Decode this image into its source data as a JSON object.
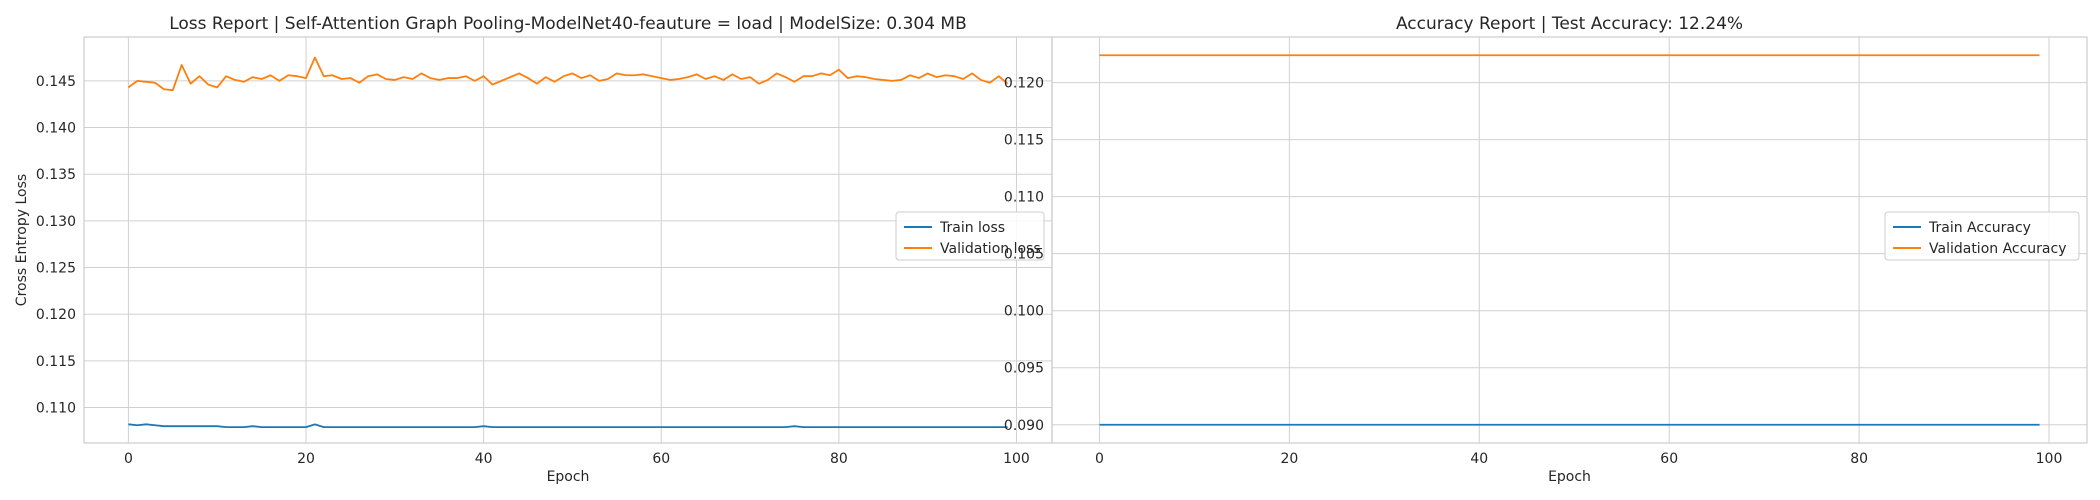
{
  "chart_data": [
    {
      "type": "line",
      "title": "Loss Report | Self-Attention Graph Pooling-ModelNet40-feauture = load | ModelSize: 0.304 MB",
      "xlabel": "Epoch",
      "ylabel": "Cross Entropy Loss",
      "xlim": [
        -5,
        104
      ],
      "ylim": [
        0.1062,
        0.1497
      ],
      "xticks": [
        0,
        20,
        40,
        60,
        80,
        100
      ],
      "yticks": [
        0.11,
        0.115,
        0.12,
        0.125,
        0.13,
        0.135,
        0.14,
        0.145
      ],
      "tick_decimals": 3,
      "grid": true,
      "legend_placement": "center-right",
      "series": [
        {
          "name": "Train loss",
          "color": "#1f77b4",
          "values": [
            0.1082,
            0.1081,
            0.1082,
            0.1081,
            0.108,
            0.108,
            0.108,
            0.108,
            0.108,
            0.108,
            0.108,
            0.1079,
            0.1079,
            0.1079,
            0.108,
            0.1079,
            0.1079,
            0.1079,
            0.1079,
            0.1079,
            0.1079,
            0.1082,
            0.1079,
            0.1079,
            0.1079,
            0.1079,
            0.1079,
            0.1079,
            0.1079,
            0.1079,
            0.1079,
            0.1079,
            0.1079,
            0.1079,
            0.1079,
            0.1079,
            0.1079,
            0.1079,
            0.1079,
            0.1079,
            0.108,
            0.1079,
            0.1079,
            0.1079,
            0.1079,
            0.1079,
            0.1079,
            0.1079,
            0.1079,
            0.1079,
            0.1079,
            0.1079,
            0.1079,
            0.1079,
            0.1079,
            0.1079,
            0.1079,
            0.1079,
            0.1079,
            0.1079,
            0.1079,
            0.1079,
            0.1079,
            0.1079,
            0.1079,
            0.1079,
            0.1079,
            0.1079,
            0.1079,
            0.1079,
            0.1079,
            0.1079,
            0.1079,
            0.1079,
            0.1079,
            0.108,
            0.1079,
            0.1079,
            0.1079,
            0.1079,
            0.1079,
            0.1079,
            0.1079,
            0.1079,
            0.1079,
            0.1079,
            0.1079,
            0.1079,
            0.1079,
            0.1079,
            0.1079,
            0.1079,
            0.1079,
            0.1079,
            0.1079,
            0.1079,
            0.1079,
            0.1079,
            0.1079,
            0.1079
          ]
        },
        {
          "name": "Validation loss",
          "color": "#ff7f0e",
          "values": [
            0.1443,
            0.145,
            0.1449,
            0.1448,
            0.1441,
            0.144,
            0.1467,
            0.1447,
            0.1455,
            0.1446,
            0.1443,
            0.1455,
            0.1451,
            0.1449,
            0.1454,
            0.1452,
            0.1456,
            0.145,
            0.1456,
            0.1455,
            0.1453,
            0.1475,
            0.1455,
            0.1456,
            0.1452,
            0.1453,
            0.1448,
            0.1455,
            0.1457,
            0.1452,
            0.1451,
            0.1454,
            0.1452,
            0.1458,
            0.1453,
            0.1451,
            0.1453,
            0.1453,
            0.1455,
            0.145,
            0.1455,
            0.1446,
            0.145,
            0.1454,
            0.1458,
            0.1453,
            0.1447,
            0.1454,
            0.1449,
            0.1455,
            0.1458,
            0.1453,
            0.1456,
            0.145,
            0.1452,
            0.1458,
            0.1456,
            0.1456,
            0.1457,
            0.1455,
            0.1453,
            0.1451,
            0.1452,
            0.1454,
            0.1457,
            0.1452,
            0.1455,
            0.1451,
            0.1457,
            0.1452,
            0.1454,
            0.1447,
            0.1451,
            0.1458,
            0.1454,
            0.1449,
            0.1455,
            0.1455,
            0.1458,
            0.1456,
            0.1462,
            0.1453,
            0.1455,
            0.1454,
            0.1452,
            0.1451,
            0.145,
            0.1451,
            0.1456,
            0.1453,
            0.1458,
            0.1454,
            0.1456,
            0.1455,
            0.1452,
            0.1458,
            0.1451,
            0.1448,
            0.1455,
            0.1447
          ]
        }
      ]
    },
    {
      "type": "line",
      "title": "Accuracy Report | Test Accuracy: 12.24%",
      "xlabel": "Epoch",
      "ylabel": "",
      "xlim": [
        -5,
        104
      ],
      "ylim": [
        0.0884,
        0.124
      ],
      "xticks": [
        0,
        20,
        40,
        60,
        80,
        100
      ],
      "yticks": [
        0.09,
        0.095,
        0.1,
        0.105,
        0.11,
        0.115,
        0.12
      ],
      "tick_decimals": 3,
      "grid": true,
      "legend_placement": "center-right",
      "series": [
        {
          "name": "Train Accuracy",
          "color": "#1f77b4",
          "constant": 0.09,
          "count": 100
        },
        {
          "name": "Validation Accuracy",
          "color": "#ff7f0e",
          "constant": 0.1224,
          "count": 100
        }
      ]
    }
  ]
}
